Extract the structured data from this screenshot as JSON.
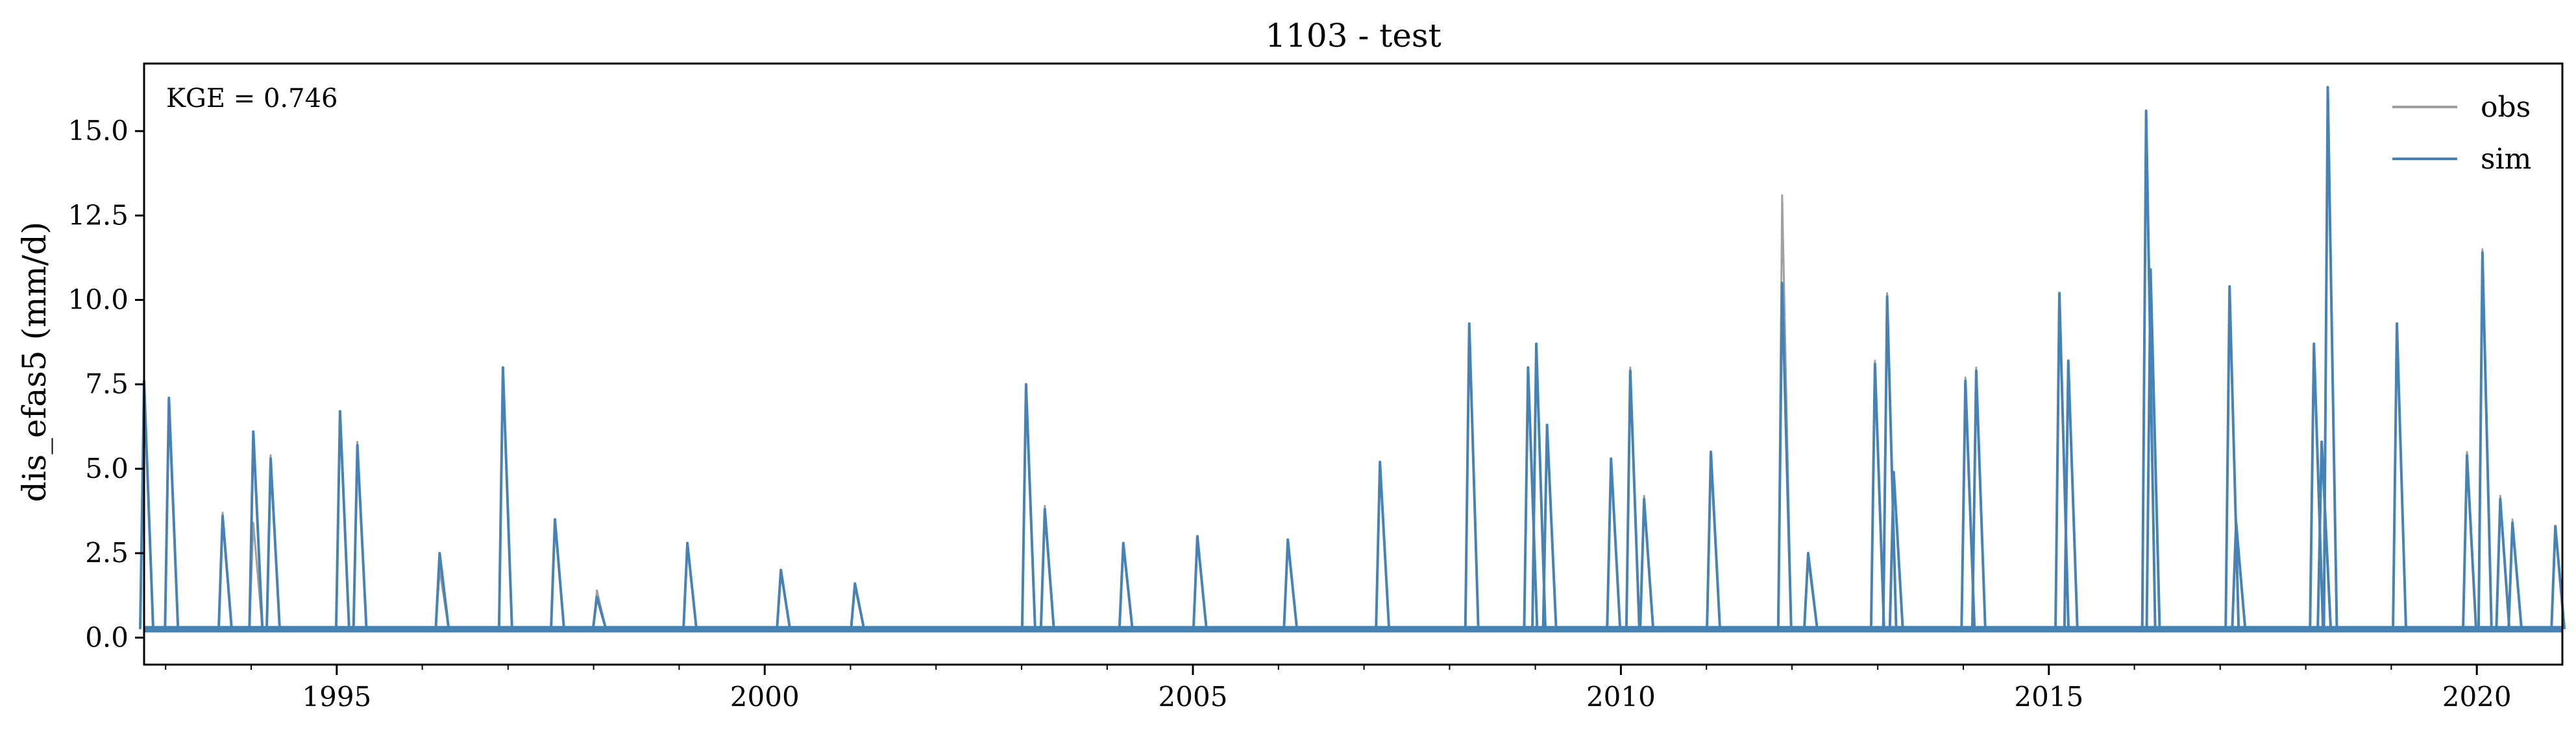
{
  "chart_data": {
    "type": "line",
    "title": "1103 - test",
    "xlabel": "",
    "ylabel": "dis_efas5 (mm/d)",
    "annotation": "KGE = 0.746",
    "legend_position": "top-right",
    "grid": false,
    "xlim": [
      "1992-10-01",
      "2020-12-31"
    ],
    "ylim": [
      -0.8,
      17.0
    ],
    "x_ticks": [
      "1995",
      "2000",
      "2005",
      "2010",
      "2015",
      "2020"
    ],
    "y_ticks": [
      "0.0",
      "2.5",
      "5.0",
      "7.5",
      "10.0",
      "12.5",
      "15.0"
    ],
    "colors": {
      "obs": "#a0a0a0",
      "sim": "#4682b4"
    },
    "series": [
      {
        "name": "obs",
        "x": [
          "1992-10-01",
          "1993-01-15",
          "1993-09-01",
          "1994-01-10",
          "1994-03-25",
          "1995-01-15",
          "1995-03-30",
          "1996-03-15",
          "1996-12-10",
          "1997-07-20",
          "1998-01-15",
          "1999-02-05",
          "2000-03-10",
          "2001-01-20",
          "2003-01-20",
          "2003-04-10",
          "2004-03-10",
          "2005-01-20",
          "2006-02-10",
          "2007-03-10",
          "2008-03-25",
          "2008-12-01",
          "2009-01-05",
          "2009-02-20",
          "2009-11-20",
          "2010-02-10",
          "2010-04-10",
          "2011-01-20",
          "2011-11-20",
          "2012-03-10",
          "2012-12-20",
          "2013-02-10",
          "2013-03-10",
          "2014-01-10",
          "2014-02-25",
          "2015-02-15",
          "2015-03-25",
          "2016-02-20",
          "2016-03-10",
          "2017-02-10",
          "2017-03-10",
          "2018-02-05",
          "2018-03-10",
          "2018-04-05",
          "2019-01-25",
          "2019-11-20",
          "2020-01-25",
          "2020-04-10",
          "2020-06-01",
          "2020-12-01"
        ],
        "y": [
          7.6,
          6.8,
          3.7,
          3.4,
          5.4,
          6.6,
          5.8,
          2.0,
          7.9,
          3.4,
          1.4,
          2.8,
          1.9,
          1.5,
          7.4,
          3.9,
          2.7,
          2.9,
          2.8,
          5.2,
          9.2,
          8.0,
          8.7,
          6.2,
          5.3,
          8.0,
          4.2,
          5.5,
          13.1,
          2.3,
          8.2,
          10.2,
          4.9,
          7.7,
          8.0,
          10.2,
          8.2,
          15.5,
          10.9,
          10.4,
          3.5,
          8.5,
          5.8,
          16.3,
          9.3,
          5.5,
          11.5,
          4.2,
          3.5,
          3.3
        ]
      },
      {
        "name": "sim",
        "x": [
          "1992-10-01",
          "1993-01-15",
          "1993-09-01",
          "1994-01-10",
          "1994-03-25",
          "1995-01-15",
          "1995-03-30",
          "1996-03-15",
          "1996-12-10",
          "1997-07-20",
          "1998-01-15",
          "1999-02-05",
          "2000-03-10",
          "2001-01-20",
          "2003-01-20",
          "2003-04-10",
          "2004-03-10",
          "2005-01-20",
          "2006-02-10",
          "2007-03-10",
          "2008-03-25",
          "2008-12-01",
          "2009-01-05",
          "2009-02-20",
          "2009-11-20",
          "2010-02-10",
          "2010-04-10",
          "2011-01-20",
          "2011-11-20",
          "2012-03-10",
          "2012-12-20",
          "2013-02-10",
          "2013-03-10",
          "2014-01-10",
          "2014-02-25",
          "2015-02-15",
          "2015-03-25",
          "2016-02-20",
          "2016-03-10",
          "2017-02-10",
          "2017-03-10",
          "2018-02-05",
          "2018-03-10",
          "2018-04-05",
          "2019-01-25",
          "2019-11-20",
          "2020-01-25",
          "2020-04-10",
          "2020-06-01",
          "2020-12-01"
        ],
        "y": [
          7.6,
          7.1,
          3.6,
          6.1,
          5.3,
          6.7,
          5.7,
          2.5,
          8.0,
          3.5,
          1.2,
          2.8,
          2.0,
          1.6,
          7.5,
          3.8,
          2.8,
          3.0,
          2.9,
          5.2,
          9.3,
          8.0,
          8.7,
          6.3,
          5.3,
          7.9,
          4.1,
          5.5,
          10.5,
          2.5,
          8.1,
          10.1,
          4.9,
          7.6,
          7.9,
          10.2,
          8.2,
          15.6,
          10.9,
          10.4,
          3.4,
          8.7,
          5.8,
          16.3,
          9.3,
          5.4,
          11.4,
          4.1,
          3.4,
          3.3
        ]
      }
    ]
  }
}
